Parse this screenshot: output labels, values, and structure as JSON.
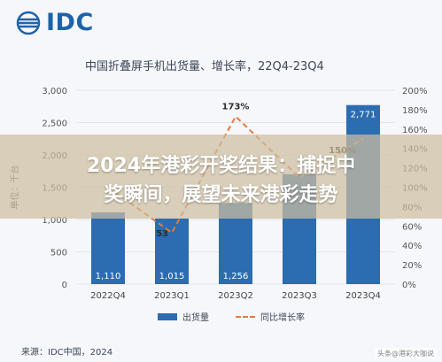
{
  "logo": {
    "text": "IDC"
  },
  "overlay": {
    "line1": "2024年港彩开奖结果：捕捉中",
    "line2": "奖瞬间，展望未来港彩走势"
  },
  "legend": {
    "bar_label": "出货量",
    "line_label": "同比增长率"
  },
  "source": "来源：IDC中国，2024",
  "watermark": "头条@港彩大咖说",
  "colors": {
    "bar": "#2c6cb0",
    "line": "#e07b39",
    "title": "#1d63ab"
  },
  "chart_data": {
    "type": "bar",
    "title": "中国折叠屏手机出货量、增长率，22Q4-23Q4",
    "categories": [
      "2022Q4",
      "2023Q1",
      "2023Q2",
      "2023Q3",
      "2023Q4"
    ],
    "ylabel": "单位：千台",
    "ylim": [
      0,
      3000
    ],
    "yticks": [
      "0",
      "500",
      "1,000",
      "1,500",
      "2,000",
      "2,500",
      "3,000"
    ],
    "y2lim": [
      0,
      200
    ],
    "y2ticks": [
      "0%",
      "20%",
      "40%",
      "60%",
      "80%",
      "100%",
      "120%",
      "140%",
      "160%",
      "180%",
      "200%"
    ],
    "series": [
      {
        "name": "出货量",
        "type": "bar",
        "values": [
          1110,
          1015,
          1256,
          1700,
          2771
        ],
        "labels": [
          "1,110",
          "1,015",
          "1,256",
          "",
          "2,771"
        ]
      },
      {
        "name": "同比增长率",
        "type": "line",
        "axis": "right",
        "values": [
          100,
          53,
          173,
          110,
          150
        ],
        "labels": [
          "",
          "53",
          "173%",
          "",
          "150%"
        ]
      }
    ]
  }
}
